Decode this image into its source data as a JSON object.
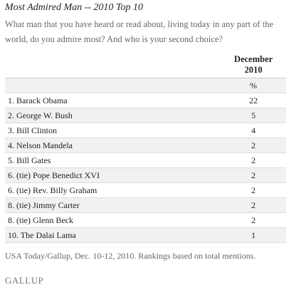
{
  "header": {
    "title": "Most Admired Man -- 2010 Top 10",
    "question": "What man that you have heard or read about, living today in any part of the world, do you admire most? And who is your second choice?"
  },
  "table": {
    "column_header": [
      "December",
      "2010"
    ],
    "unit": "%",
    "rows": [
      [
        "1. Barack Obama",
        22
      ],
      [
        "2. George W. Bush",
        5
      ],
      [
        "3. Bill Clinton",
        4
      ],
      [
        "4. Nelson Mandela",
        2
      ],
      [
        "5. Bill Gates",
        2
      ],
      [
        "6. (tie) Pope Benedict XVI",
        2
      ],
      [
        "6. (tie) Rev. Billy Graham",
        2
      ],
      [
        "8. (tie) Jimmy Carter",
        2
      ],
      [
        "8. (tie) Glenn Beck",
        2
      ],
      [
        "10. The Dalai Lama",
        1
      ]
    ]
  },
  "footnote": "USA Today/Gallup, Dec. 10-12, 2010. Rankings based on total mentions.",
  "logo": "GALLUP"
}
